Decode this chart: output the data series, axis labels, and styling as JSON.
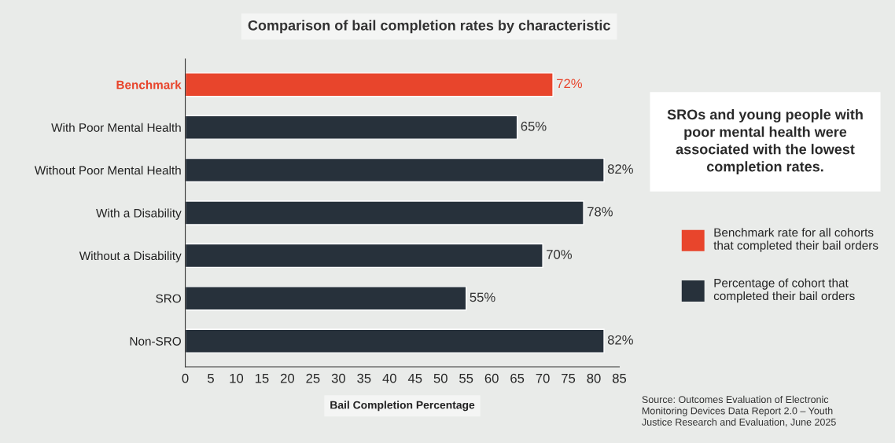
{
  "chart_data": {
    "type": "bar",
    "orientation": "horizontal",
    "title": "Comparison of bail completion rates by characteristic",
    "xlabel": "Bail Completion Percentage",
    "categories": [
      "Benchmark",
      "With Poor Mental Health",
      "Without Poor Mental Health",
      "With a Disability",
      "Without a Disability",
      "SRO",
      "Non-SRO"
    ],
    "series": [
      {
        "name": "Benchmark rate for all cohorts that completed their bail orders",
        "color": "#e8452c",
        "values": [
          72,
          null,
          null,
          null,
          null,
          null,
          null
        ],
        "value_labels": [
          "72%",
          null,
          null,
          null,
          null,
          null,
          null
        ]
      },
      {
        "name": "Percentage of cohort that completed their bail orders",
        "color": "#27313b",
        "values": [
          null,
          65,
          82,
          78,
          70,
          55,
          82
        ],
        "value_labels": [
          null,
          "65%",
          "82%",
          "78%",
          "70%",
          "55%",
          "82%"
        ]
      }
    ],
    "xlim": [
      0,
      85
    ],
    "xticks": [
      0,
      5,
      10,
      15,
      20,
      25,
      30,
      35,
      40,
      45,
      50,
      55,
      60,
      65,
      70,
      75,
      80,
      85
    ],
    "grid": false,
    "legend": "right",
    "annotations": [
      "SROs and young people with poor mental health were associated with the lowest completion rates.",
      "Source: Outcomes Evaluation of Electronic Monitoring Devices Data Report 2.0 – Youth Justice Research and Evaluation, June 2025"
    ]
  }
}
